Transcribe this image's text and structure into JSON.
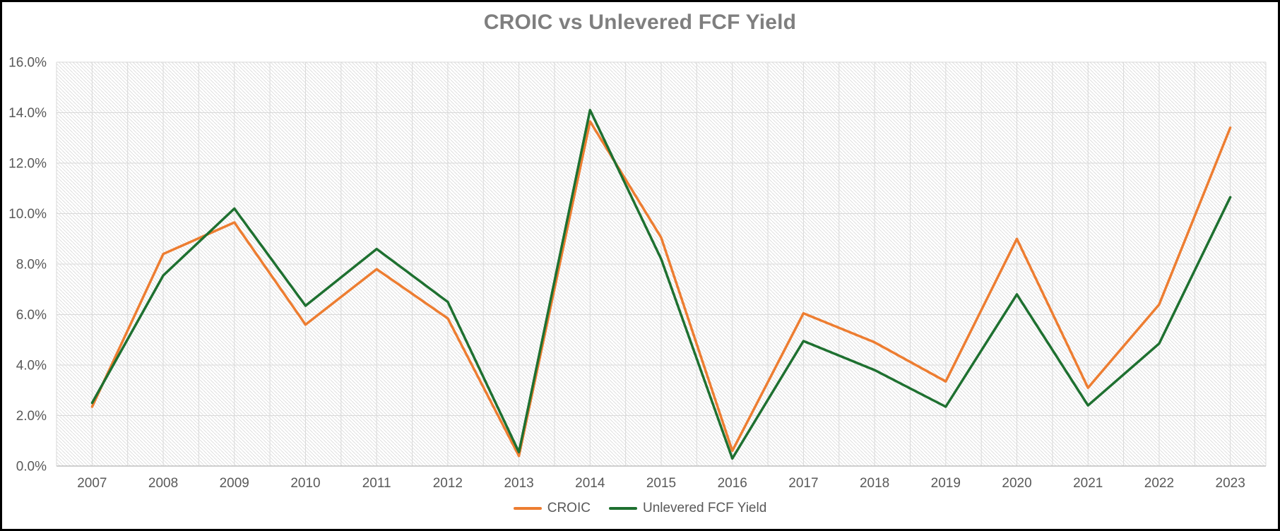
{
  "chart_data": {
    "type": "line",
    "title": "CROIC vs Unlevered FCF Yield",
    "categories": [
      "2007",
      "2008",
      "2009",
      "2010",
      "2011",
      "2012",
      "2013",
      "2014",
      "2015",
      "2016",
      "2017",
      "2018",
      "2019",
      "2020",
      "2021",
      "2022",
      "2023"
    ],
    "series": [
      {
        "name": "CROIC",
        "color": "#ED7D31",
        "values": [
          2.35,
          8.4,
          9.65,
          5.6,
          7.8,
          5.85,
          0.4,
          13.65,
          9.05,
          0.6,
          6.05,
          4.9,
          3.35,
          9.0,
          3.1,
          6.4,
          13.4
        ]
      },
      {
        "name": "Unlevered FCF Yield",
        "color": "#1E7030",
        "values": [
          2.5,
          7.55,
          10.2,
          6.35,
          8.6,
          6.5,
          0.55,
          14.1,
          8.2,
          0.3,
          4.95,
          3.8,
          2.35,
          6.8,
          2.4,
          4.85,
          10.65
        ]
      }
    ],
    "y_axis": {
      "min": 0,
      "max": 16,
      "step": 2,
      "tick_labels": [
        "0.0%",
        "2.0%",
        "4.0%",
        "6.0%",
        "8.0%",
        "10.0%",
        "12.0%",
        "14.0%",
        "16.0%"
      ]
    },
    "legend_position": "bottom",
    "grid": {
      "horizontal": true,
      "vertical": true,
      "gridline_color": "#D9D9D9",
      "axis_line_color": "#BFBFBF",
      "plot_hatch_color": "#DCDCDC",
      "tick_label_color": "#595959",
      "title_color": "#7F7F7F"
    }
  }
}
